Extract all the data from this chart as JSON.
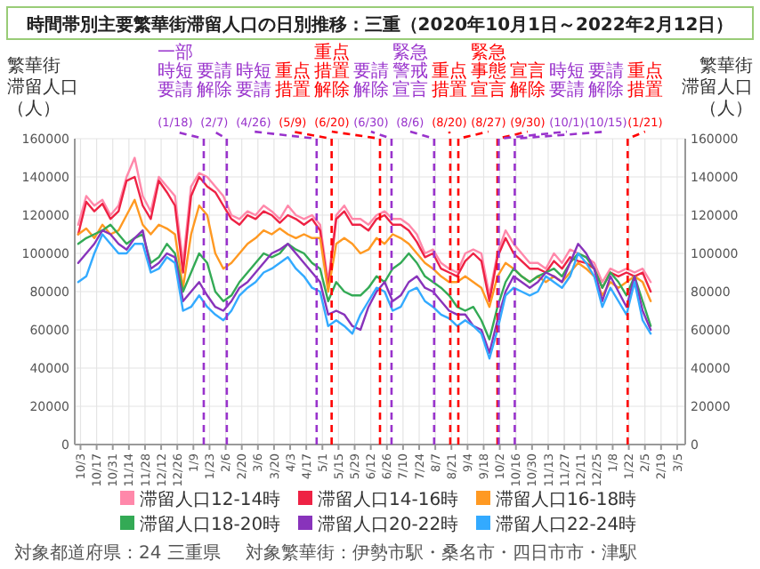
{
  "chart_data": {
    "type": "line",
    "title": "時間帯別主要繁華街滞留人口の日別推移：三重（2020年10月1日～2022年2月12日）",
    "ylabel": "繁華街滞留人口（人）",
    "y2label": "繁華街滞留人口（人）",
    "x": [
      "2020-10-01",
      "2020-10-08",
      "2020-10-15",
      "2020-10-22",
      "2020-10-29",
      "2020-11-05",
      "2020-11-12",
      "2020-11-19",
      "2020-11-26",
      "2020-12-03",
      "2020-12-10",
      "2020-12-17",
      "2020-12-24",
      "2020-12-31",
      "2021-01-07",
      "2021-01-14",
      "2021-01-21",
      "2021-01-28",
      "2021-02-04",
      "2021-02-11",
      "2021-02-18",
      "2021-02-25",
      "2021-03-04",
      "2021-03-11",
      "2021-03-18",
      "2021-03-25",
      "2021-04-01",
      "2021-04-08",
      "2021-04-15",
      "2021-04-22",
      "2021-04-29",
      "2021-05-06",
      "2021-05-13",
      "2021-05-20",
      "2021-05-27",
      "2021-06-03",
      "2021-06-10",
      "2021-06-17",
      "2021-06-24",
      "2021-07-01",
      "2021-07-08",
      "2021-07-15",
      "2021-07-22",
      "2021-07-29",
      "2021-08-05",
      "2021-08-12",
      "2021-08-19",
      "2021-08-26",
      "2021-09-02",
      "2021-09-09",
      "2021-09-16",
      "2021-09-23",
      "2021-09-30",
      "2021-10-07",
      "2021-10-14",
      "2021-10-21",
      "2021-10-28",
      "2021-11-04",
      "2021-11-11",
      "2021-11-18",
      "2021-11-25",
      "2021-12-02",
      "2021-12-09",
      "2021-12-16",
      "2021-12-23",
      "2021-12-30",
      "2022-01-06",
      "2022-01-13",
      "2022-01-20",
      "2022-01-27",
      "2022-02-03",
      "2022-02-10"
    ],
    "series": [
      {
        "name": "滞留人口12-14時",
        "color": "#ff88aa",
        "values": [
          115000,
          130000,
          125000,
          128000,
          120000,
          125000,
          140000,
          150000,
          130000,
          122000,
          140000,
          135000,
          130000,
          95000,
          135000,
          142000,
          140000,
          135000,
          130000,
          120000,
          118000,
          122000,
          120000,
          125000,
          122000,
          118000,
          125000,
          120000,
          118000,
          120000,
          115000,
          85000,
          120000,
          125000,
          118000,
          118000,
          115000,
          120000,
          122000,
          118000,
          118000,
          115000,
          110000,
          100000,
          102000,
          95000,
          92000,
          90000,
          100000,
          102000,
          100000,
          78000,
          100000,
          112000,
          105000,
          100000,
          95000,
          95000,
          92000,
          100000,
          95000,
          102000,
          100000,
          98000,
          95000,
          85000,
          92000,
          90000,
          92000,
          90000,
          92000,
          85000
        ]
      },
      {
        "name": "滞留人口14-16時",
        "color": "#ee2244",
        "values": [
          110000,
          127000,
          122000,
          126000,
          118000,
          122000,
          138000,
          140000,
          125000,
          118000,
          138000,
          132000,
          125000,
          90000,
          130000,
          140000,
          135000,
          132000,
          125000,
          118000,
          115000,
          120000,
          118000,
          122000,
          120000,
          116000,
          120000,
          118000,
          115000,
          118000,
          112000,
          82000,
          118000,
          122000,
          115000,
          115000,
          112000,
          118000,
          120000,
          115000,
          115000,
          112000,
          106000,
          98000,
          100000,
          92000,
          90000,
          88000,
          96000,
          100000,
          96000,
          75000,
          98000,
          108000,
          100000,
          96000,
          92000,
          92000,
          90000,
          96000,
          92000,
          98000,
          96000,
          95000,
          92000,
          82000,
          90000,
          88000,
          90000,
          88000,
          90000,
          80000
        ]
      },
      {
        "name": "滞留人口16-18時",
        "color": "#ff9922",
        "values": [
          110000,
          113000,
          108000,
          115000,
          110000,
          112000,
          120000,
          128000,
          115000,
          110000,
          115000,
          113000,
          110000,
          82000,
          110000,
          125000,
          120000,
          100000,
          92000,
          95000,
          100000,
          105000,
          108000,
          112000,
          110000,
          113000,
          110000,
          108000,
          110000,
          108000,
          108000,
          80000,
          105000,
          108000,
          105000,
          100000,
          102000,
          108000,
          105000,
          110000,
          108000,
          105000,
          100000,
          95000,
          92000,
          88000,
          85000,
          85000,
          88000,
          85000,
          82000,
          72000,
          88000,
          95000,
          92000,
          88000,
          85000,
          88000,
          85000,
          88000,
          85000,
          90000,
          95000,
          92000,
          88000,
          78000,
          85000,
          82000,
          85000,
          88000,
          85000,
          75000
        ]
      },
      {
        "name": "滞留人口18-20時",
        "color": "#33aa55",
        "values": [
          105000,
          108000,
          110000,
          112000,
          115000,
          110000,
          105000,
          108000,
          110000,
          95000,
          98000,
          105000,
          100000,
          80000,
          90000,
          100000,
          95000,
          80000,
          75000,
          78000,
          85000,
          90000,
          95000,
          100000,
          98000,
          100000,
          105000,
          102000,
          100000,
          95000,
          92000,
          75000,
          85000,
          80000,
          78000,
          78000,
          82000,
          88000,
          85000,
          92000,
          95000,
          100000,
          95000,
          88000,
          85000,
          82000,
          78000,
          72000,
          70000,
          72000,
          65000,
          55000,
          72000,
          85000,
          92000,
          88000,
          85000,
          88000,
          90000,
          92000,
          88000,
          95000,
          100000,
          98000,
          92000,
          82000,
          90000,
          85000,
          78000,
          88000,
          75000,
          62000
        ]
      },
      {
        "name": "滞留人口20-22時",
        "color": "#8833bb",
        "values": [
          95000,
          100000,
          105000,
          112000,
          110000,
          105000,
          102000,
          108000,
          112000,
          92000,
          95000,
          100000,
          98000,
          75000,
          80000,
          85000,
          78000,
          72000,
          70000,
          75000,
          82000,
          85000,
          90000,
          95000,
          100000,
          102000,
          105000,
          100000,
          95000,
          90000,
          85000,
          68000,
          70000,
          68000,
          62000,
          60000,
          72000,
          80000,
          85000,
          75000,
          78000,
          85000,
          88000,
          82000,
          80000,
          75000,
          70000,
          68000,
          68000,
          62000,
          60000,
          48000,
          65000,
          80000,
          88000,
          85000,
          82000,
          85000,
          90000,
          88000,
          85000,
          95000,
          105000,
          100000,
          92000,
          75000,
          88000,
          80000,
          72000,
          88000,
          70000,
          60000
        ]
      },
      {
        "name": "滞留人口22-24時",
        "color": "#33aaff",
        "values": [
          85000,
          88000,
          100000,
          110000,
          105000,
          100000,
          100000,
          105000,
          105000,
          90000,
          92000,
          98000,
          95000,
          70000,
          72000,
          78000,
          72000,
          68000,
          65000,
          70000,
          78000,
          82000,
          85000,
          90000,
          92000,
          95000,
          98000,
          92000,
          88000,
          82000,
          80000,
          62000,
          65000,
          62000,
          58000,
          68000,
          75000,
          82000,
          80000,
          70000,
          72000,
          80000,
          82000,
          75000,
          72000,
          68000,
          66000,
          62000,
          65000,
          62000,
          58000,
          45000,
          60000,
          78000,
          82000,
          80000,
          78000,
          80000,
          88000,
          85000,
          82000,
          88000,
          100000,
          95000,
          88000,
          72000,
          82000,
          75000,
          68000,
          85000,
          65000,
          58000
        ]
      }
    ],
    "xlim": [
      "2020-09-28",
      "2022-03-12"
    ],
    "xticks": [
      {
        "value": "2020-10-03",
        "label": "10/3"
      },
      {
        "value": "2020-10-17",
        "label": "10/17"
      },
      {
        "value": "2020-10-31",
        "label": "10/31"
      },
      {
        "value": "2020-11-14",
        "label": "11/14"
      },
      {
        "value": "2020-11-28",
        "label": "11/28"
      },
      {
        "value": "2020-12-12",
        "label": "12/12"
      },
      {
        "value": "2020-12-26",
        "label": "12/26"
      },
      {
        "value": "2021-01-09",
        "label": "1/9"
      },
      {
        "value": "2021-01-23",
        "label": "1/23"
      },
      {
        "value": "2021-02-06",
        "label": "2/6"
      },
      {
        "value": "2021-02-20",
        "label": "2/20"
      },
      {
        "value": "2021-03-06",
        "label": "3/6"
      },
      {
        "value": "2021-03-20",
        "label": "3/20"
      },
      {
        "value": "2021-04-03",
        "label": "4/3"
      },
      {
        "value": "2021-04-17",
        "label": "4/17"
      },
      {
        "value": "2021-05-01",
        "label": "5/1"
      },
      {
        "value": "2021-05-15",
        "label": "5/15"
      },
      {
        "value": "2021-05-29",
        "label": "5/29"
      },
      {
        "value": "2021-06-12",
        "label": "6/12"
      },
      {
        "value": "2021-06-26",
        "label": "6/26"
      },
      {
        "value": "2021-07-10",
        "label": "7/10"
      },
      {
        "value": "2021-07-24",
        "label": "7/24"
      },
      {
        "value": "2021-08-07",
        "label": "8/7"
      },
      {
        "value": "2021-08-21",
        "label": "8/21"
      },
      {
        "value": "2021-09-04",
        "label": "9/4"
      },
      {
        "value": "2021-09-18",
        "label": "9/18"
      },
      {
        "value": "2021-10-02",
        "label": "10/2"
      },
      {
        "value": "2021-10-16",
        "label": "10/16"
      },
      {
        "value": "2021-10-30",
        "label": "10/30"
      },
      {
        "value": "2021-11-13",
        "label": "11/13"
      },
      {
        "value": "2021-11-27",
        "label": "11/27"
      },
      {
        "value": "2021-12-11",
        "label": "12/11"
      },
      {
        "value": "2021-12-25",
        "label": "12/25"
      },
      {
        "value": "2022-01-08",
        "label": "1/8"
      },
      {
        "value": "2022-01-22",
        "label": "1/22"
      },
      {
        "value": "2022-02-05",
        "label": "2/5"
      },
      {
        "value": "2022-02-19",
        "label": "2/19"
      },
      {
        "value": "2022-03-05",
        "label": "3/5"
      }
    ],
    "ylim": [
      0,
      160000
    ],
    "yticks": [
      0,
      20000,
      40000,
      60000,
      80000,
      100000,
      120000,
      140000,
      160000
    ],
    "y2lim": [
      0,
      160000
    ],
    "y2ticks": [
      0,
      20000,
      40000,
      60000,
      80000,
      100000,
      120000,
      140000,
      160000
    ],
    "grid": true,
    "legend": "bottom",
    "ref_lines": [
      {
        "axis": "x",
        "value": "2021-01-18",
        "label": "一部時短要請(1/18)",
        "color": "#9933cc",
        "line_style": "dashed"
      },
      {
        "axis": "x",
        "value": "2021-02-07",
        "label": "要請解除(2/7)",
        "color": "#9933cc",
        "line_style": "dashed"
      },
      {
        "axis": "x",
        "value": "2021-04-26",
        "label": "時短要請(4/26)",
        "color": "#9933cc",
        "line_style": "dashed"
      },
      {
        "axis": "x",
        "value": "2021-05-09",
        "label": "重点措置(5/9)",
        "color": "#ff0000",
        "line_style": "dashed"
      },
      {
        "axis": "x",
        "value": "2021-06-20",
        "label": "重点措置解除(6/20)",
        "color": "#ff0000",
        "line_style": "dashed"
      },
      {
        "axis": "x",
        "value": "2021-06-30",
        "label": "要請解除(6/30)",
        "color": "#9933cc",
        "line_style": "dashed"
      },
      {
        "axis": "x",
        "value": "2021-08-06",
        "label": "緊急警戒宣言(8/6)",
        "color": "#9933cc",
        "line_style": "dashed"
      },
      {
        "axis": "x",
        "value": "2021-08-20",
        "label": "重点措置(8/20)",
        "color": "#ff0000",
        "line_style": "dashed"
      },
      {
        "axis": "x",
        "value": "2021-08-27",
        "label": "緊急事態宣言(8/27)",
        "color": "#ff0000",
        "line_style": "dashed"
      },
      {
        "axis": "x",
        "value": "2021-09-30",
        "label": "宣言解除(9/30)",
        "color": "#ff0000",
        "line_style": "dashed"
      },
      {
        "axis": "x",
        "value": "2021-10-01",
        "label": "時短要請(10/1)",
        "color": "#9933cc",
        "line_style": "dashed"
      },
      {
        "axis": "x",
        "value": "2021-10-15",
        "label": "要請解除(10/15)",
        "color": "#9933cc",
        "line_style": "dashed"
      },
      {
        "axis": "x",
        "value": "2022-01-21",
        "label": "重点措置(1/21)",
        "color": "#ff0000",
        "line_style": "dashed"
      }
    ],
    "annotations": [
      "対象都道府県：24 三重県",
      "対象繁華街：伊勢市駅・桑名市・四日市市・津駅"
    ]
  }
}
